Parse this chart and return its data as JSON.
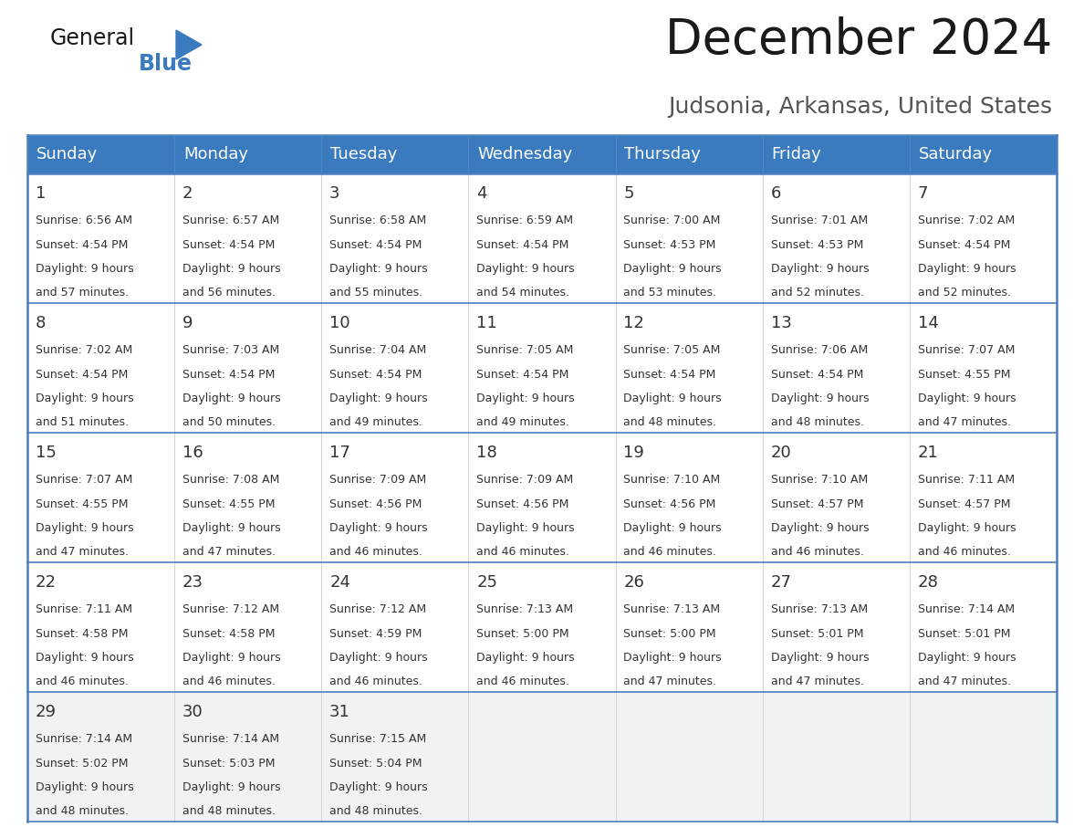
{
  "title": "December 2024",
  "subtitle": "Judsonia, Arkansas, United States",
  "header_color": "#3a7abf",
  "header_text_color": "#ffffff",
  "cell_bg_white": "#ffffff",
  "cell_bg_gray": "#f0f2f5",
  "border_color": "#3a7abf",
  "divider_color": "#4a7fc0",
  "days_of_week": [
    "Sunday",
    "Monday",
    "Tuesday",
    "Wednesday",
    "Thursday",
    "Friday",
    "Saturday"
  ],
  "calendar_data": [
    [
      {
        "day": 1,
        "sunrise": "6:56 AM",
        "sunset": "4:54 PM",
        "daylight_min": "57 minutes."
      },
      {
        "day": 2,
        "sunrise": "6:57 AM",
        "sunset": "4:54 PM",
        "daylight_min": "56 minutes."
      },
      {
        "day": 3,
        "sunrise": "6:58 AM",
        "sunset": "4:54 PM",
        "daylight_min": "55 minutes."
      },
      {
        "day": 4,
        "sunrise": "6:59 AM",
        "sunset": "4:54 PM",
        "daylight_min": "54 minutes."
      },
      {
        "day": 5,
        "sunrise": "7:00 AM",
        "sunset": "4:53 PM",
        "daylight_min": "53 minutes."
      },
      {
        "day": 6,
        "sunrise": "7:01 AM",
        "sunset": "4:53 PM",
        "daylight_min": "52 minutes."
      },
      {
        "day": 7,
        "sunrise": "7:02 AM",
        "sunset": "4:54 PM",
        "daylight_min": "52 minutes."
      }
    ],
    [
      {
        "day": 8,
        "sunrise": "7:02 AM",
        "sunset": "4:54 PM",
        "daylight_min": "51 minutes."
      },
      {
        "day": 9,
        "sunrise": "7:03 AM",
        "sunset": "4:54 PM",
        "daylight_min": "50 minutes."
      },
      {
        "day": 10,
        "sunrise": "7:04 AM",
        "sunset": "4:54 PM",
        "daylight_min": "49 minutes."
      },
      {
        "day": 11,
        "sunrise": "7:05 AM",
        "sunset": "4:54 PM",
        "daylight_min": "49 minutes."
      },
      {
        "day": 12,
        "sunrise": "7:05 AM",
        "sunset": "4:54 PM",
        "daylight_min": "48 minutes."
      },
      {
        "day": 13,
        "sunrise": "7:06 AM",
        "sunset": "4:54 PM",
        "daylight_min": "48 minutes."
      },
      {
        "day": 14,
        "sunrise": "7:07 AM",
        "sunset": "4:55 PM",
        "daylight_min": "47 minutes."
      }
    ],
    [
      {
        "day": 15,
        "sunrise": "7:07 AM",
        "sunset": "4:55 PM",
        "daylight_min": "47 minutes."
      },
      {
        "day": 16,
        "sunrise": "7:08 AM",
        "sunset": "4:55 PM",
        "daylight_min": "47 minutes."
      },
      {
        "day": 17,
        "sunrise": "7:09 AM",
        "sunset": "4:56 PM",
        "daylight_min": "46 minutes."
      },
      {
        "day": 18,
        "sunrise": "7:09 AM",
        "sunset": "4:56 PM",
        "daylight_min": "46 minutes."
      },
      {
        "day": 19,
        "sunrise": "7:10 AM",
        "sunset": "4:56 PM",
        "daylight_min": "46 minutes."
      },
      {
        "day": 20,
        "sunrise": "7:10 AM",
        "sunset": "4:57 PM",
        "daylight_min": "46 minutes."
      },
      {
        "day": 21,
        "sunrise": "7:11 AM",
        "sunset": "4:57 PM",
        "daylight_min": "46 minutes."
      }
    ],
    [
      {
        "day": 22,
        "sunrise": "7:11 AM",
        "sunset": "4:58 PM",
        "daylight_min": "46 minutes."
      },
      {
        "day": 23,
        "sunrise": "7:12 AM",
        "sunset": "4:58 PM",
        "daylight_min": "46 minutes."
      },
      {
        "day": 24,
        "sunrise": "7:12 AM",
        "sunset": "4:59 PM",
        "daylight_min": "46 minutes."
      },
      {
        "day": 25,
        "sunrise": "7:13 AM",
        "sunset": "5:00 PM",
        "daylight_min": "46 minutes."
      },
      {
        "day": 26,
        "sunrise": "7:13 AM",
        "sunset": "5:00 PM",
        "daylight_min": "47 minutes."
      },
      {
        "day": 27,
        "sunrise": "7:13 AM",
        "sunset": "5:01 PM",
        "daylight_min": "47 minutes."
      },
      {
        "day": 28,
        "sunrise": "7:14 AM",
        "sunset": "5:01 PM",
        "daylight_min": "47 minutes."
      }
    ],
    [
      {
        "day": 29,
        "sunrise": "7:14 AM",
        "sunset": "5:02 PM",
        "daylight_min": "48 minutes."
      },
      {
        "day": 30,
        "sunrise": "7:14 AM",
        "sunset": "5:03 PM",
        "daylight_min": "48 minutes."
      },
      {
        "day": 31,
        "sunrise": "7:15 AM",
        "sunset": "5:04 PM",
        "daylight_min": "48 minutes."
      },
      null,
      null,
      null,
      null
    ]
  ],
  "logo_text_general": "General",
  "logo_text_blue": "Blue",
  "text_color": "#333333",
  "title_fontsize": 38,
  "subtitle_fontsize": 18,
  "header_fontsize": 13,
  "day_num_fontsize": 13,
  "cell_text_fontsize": 9
}
